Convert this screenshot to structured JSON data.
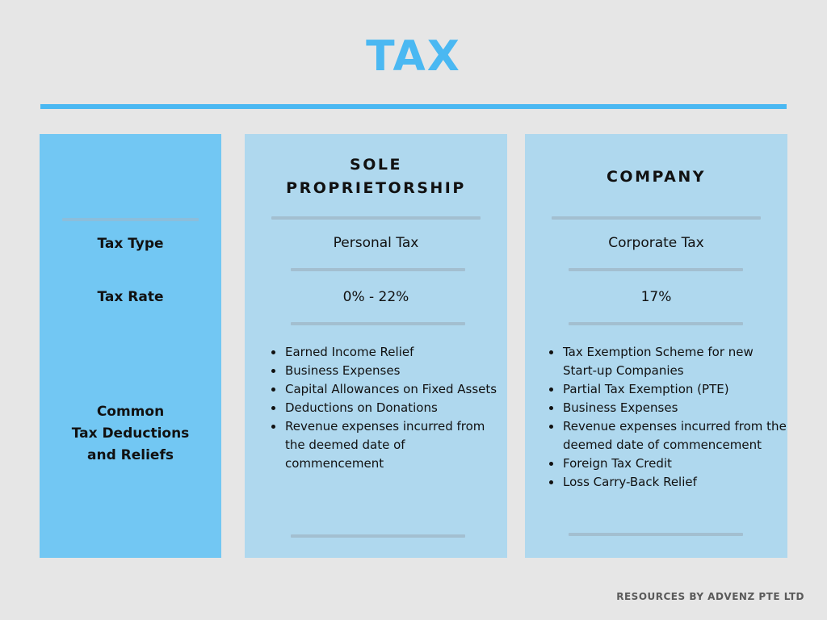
{
  "title": "TAX",
  "columns": {
    "sole": {
      "heading_line1": "SOLE",
      "heading_line2": "PROPRIETORSHIP"
    },
    "company": {
      "heading": "COMPANY"
    }
  },
  "rows": {
    "tax_type": {
      "label": "Tax Type",
      "sole": "Personal Tax",
      "company": "Corporate Tax"
    },
    "tax_rate": {
      "label": "Tax Rate",
      "sole": "0% - 22%",
      "company": "17%"
    },
    "deductions": {
      "label_line1": "Common",
      "label_line2": "Tax Deductions",
      "label_line3": "and Reliefs",
      "sole": [
        "Earned Income Relief",
        "Business Expenses",
        "Capital Allowances on Fixed Assets",
        "Deductions on Donations",
        "Revenue expenses incurred from the deemed date of commencement"
      ],
      "company": [
        "Tax Exemption Scheme for new Start-up Companies",
        "Partial Tax Exemption (PTE)",
        "Business Expenses",
        "Revenue expenses incurred from the deemed date of commencement",
        "Foreign Tax Credit",
        "Loss Carry-Back Relief"
      ]
    }
  },
  "footer": "RESOURCES BY ADVENZ PTE LTD"
}
